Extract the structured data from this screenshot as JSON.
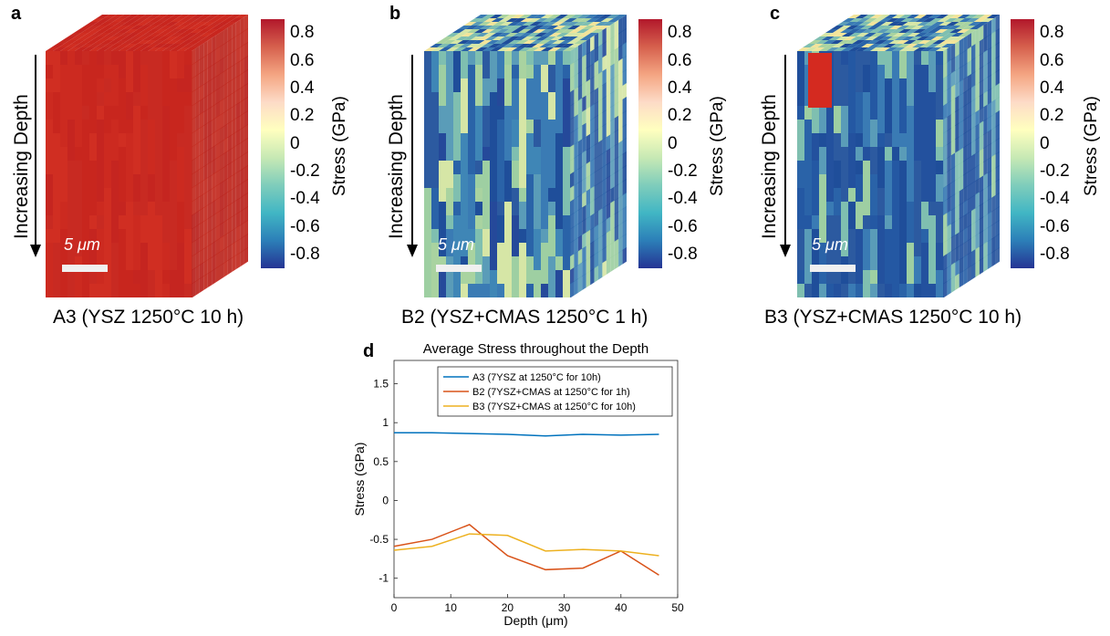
{
  "panels": [
    {
      "letter": "a",
      "caption": "A3 (YSZ 1250°C 10 h)",
      "depth_label": "Increasing Depth",
      "scale_label": "5 μm",
      "colorbar_label": "Stress (GPa)",
      "cube_style": "uniform-red"
    },
    {
      "letter": "b",
      "caption": "B2 (YSZ+CMAS 1250°C 1 h)",
      "depth_label": "Increasing Depth",
      "scale_label": "5 μm",
      "colorbar_label": "Stress (GPa)",
      "cube_style": "mixed"
    },
    {
      "letter": "c",
      "caption": "B3 (YSZ+CMAS 1250°C 10 h)",
      "depth_label": "Increasing Depth",
      "scale_label": "5 μm",
      "colorbar_label": "Stress (GPa)",
      "cube_style": "mixed-blue"
    }
  ],
  "colorbar": {
    "ticks": [
      "0.8",
      "0.6",
      "0.4",
      "0.2",
      "0",
      "-0.2",
      "-0.4",
      "-0.6",
      "-0.8"
    ],
    "range": [
      -0.9,
      0.9
    ],
    "colors": [
      "#b2182b",
      "#d6604d",
      "#f4a582",
      "#fddbc7",
      "#ffffbf",
      "#c7e9b4",
      "#7fcdbb",
      "#41b6c4",
      "#2c7fb8",
      "#253494"
    ]
  },
  "chart_data": {
    "type": "line",
    "panel_letter": "d",
    "title": "Average Stress throughout the Depth",
    "xlabel": "Depth (μm)",
    "ylabel": "Stress (GPa)",
    "xlim": [
      0,
      50
    ],
    "ylim": [
      -1.25,
      1.8
    ],
    "xticks": [
      0,
      10,
      20,
      30,
      40,
      50
    ],
    "yticks": [
      -1,
      -0.5,
      0,
      0.5,
      1,
      1.5
    ],
    "ytick_labels": [
      "-1",
      "-0.5",
      "0",
      "0.5",
      "1",
      "1.5"
    ],
    "legend_position": "top-right",
    "series": [
      {
        "name": "A3 (7YSZ at 1250°C for 10h)",
        "color": "#0072bd",
        "x": [
          0,
          6.7,
          13.3,
          20,
          26.7,
          33.3,
          40,
          46.7
        ],
        "y": [
          0.87,
          0.87,
          0.86,
          0.85,
          0.83,
          0.85,
          0.84,
          0.85
        ]
      },
      {
        "name": "B2 (7YSZ+CMAS at 1250°C for 1h)",
        "color": "#d95319",
        "x": [
          0,
          6.7,
          13.3,
          20,
          26.7,
          33.3,
          40,
          46.7
        ],
        "y": [
          -0.59,
          -0.5,
          -0.31,
          -0.71,
          -0.89,
          -0.87,
          -0.65,
          -0.96
        ]
      },
      {
        "name": "B3 (7YSZ+CMAS at 1250°C for 10h)",
        "color": "#edb120",
        "x": [
          0,
          6.7,
          13.3,
          20,
          26.7,
          33.3,
          40,
          46.7
        ],
        "y": [
          -0.64,
          -0.59,
          -0.43,
          -0.45,
          -0.65,
          -0.63,
          -0.65,
          -0.71
        ]
      }
    ]
  }
}
